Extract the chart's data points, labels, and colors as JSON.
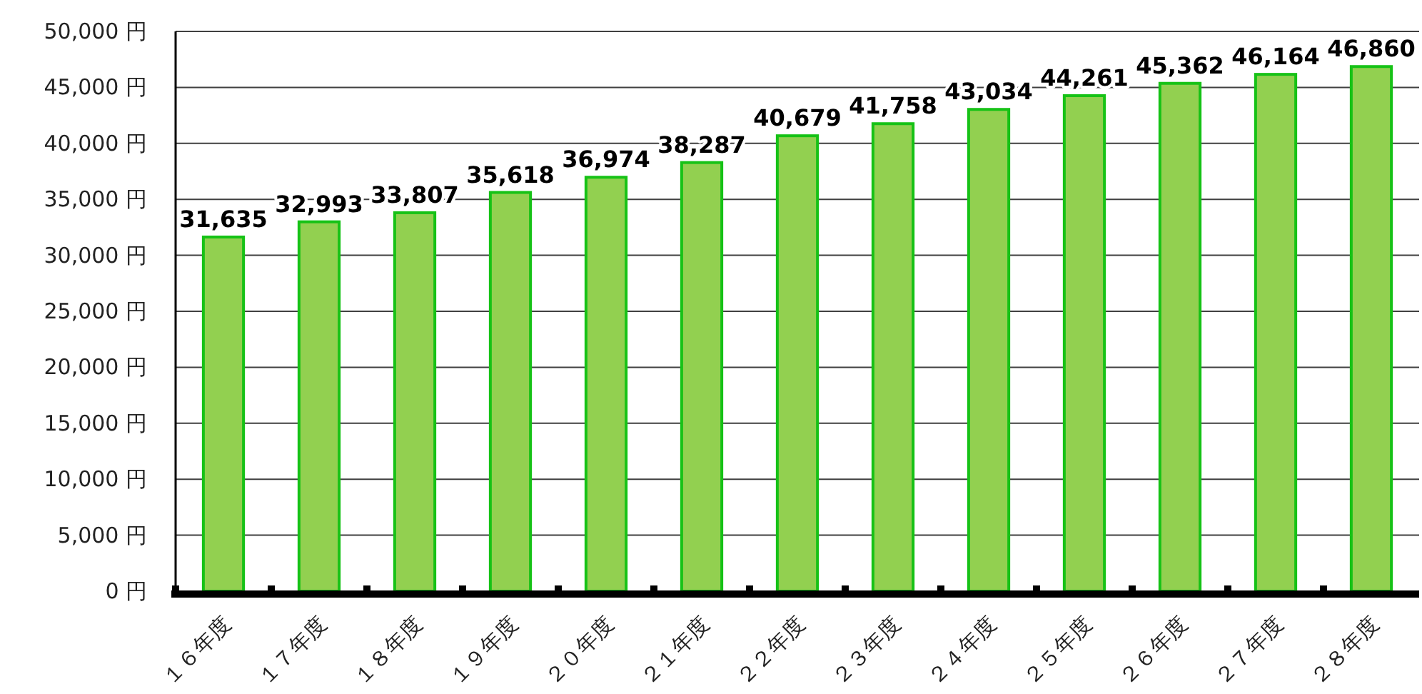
{
  "chart_data": {
    "type": "bar",
    "categories": [
      "１６年度",
      "１７年度",
      "１８年度",
      "１９年度",
      "２０年度",
      "２１年度",
      "２２年度",
      "２３年度",
      "２４年度",
      "２５年度",
      "２６年度",
      "２７年度",
      "２８年度"
    ],
    "values": [
      31635,
      32993,
      33807,
      35618,
      36974,
      38287,
      40679,
      41758,
      43034,
      44261,
      45362,
      46164,
      46860
    ],
    "color": "#92d050",
    "ylim": [
      0,
      50000
    ],
    "yticks": [
      {
        "value": 0,
        "label": "0 円"
      },
      {
        "value": 5000,
        "label": "5,000 円"
      },
      {
        "value": 10000,
        "label": "10,000 円"
      },
      {
        "value": 15000,
        "label": "15,000 円"
      },
      {
        "value": 20000,
        "label": "20,000 円"
      },
      {
        "value": 25000,
        "label": "25,000 円"
      },
      {
        "value": 30000,
        "label": "30,000 円"
      },
      {
        "value": 35000,
        "label": "35,000 円"
      },
      {
        "value": 40000,
        "label": "40,000 円"
      },
      {
        "value": 45000,
        "label": "45,000 円"
      },
      {
        "value": 50000,
        "label": "50,000 円"
      }
    ],
    "grid": "y",
    "value_labels": [
      "31,635",
      "32,993",
      "33,807",
      "35,618",
      "36,974",
      "38,287",
      "40,679",
      "41,758",
      "43,034",
      "44,261",
      "45,362",
      "46,164",
      "46,860"
    ]
  }
}
